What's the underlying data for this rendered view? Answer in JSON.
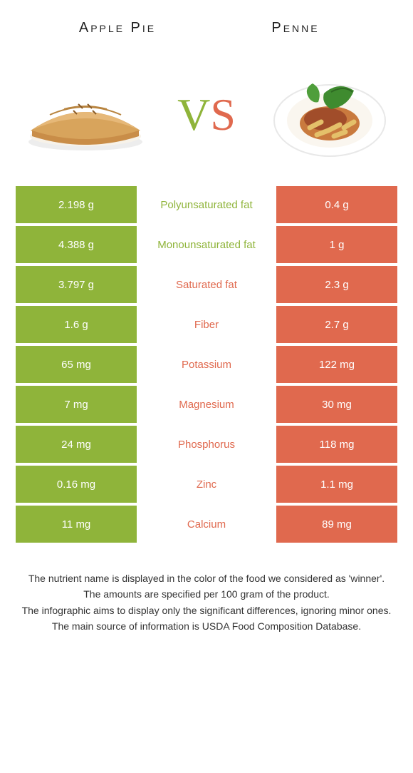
{
  "colors": {
    "left": "#8fb43a",
    "right": "#e0694e",
    "text": "#333333"
  },
  "header": {
    "left_title": "Apple Pie",
    "right_title": "Penne"
  },
  "vs": {
    "label": "VS",
    "left_color": "#8fb43a",
    "right_color": "#e0694e"
  },
  "rows": [
    {
      "left": "2.198 g",
      "label": "Polyunsaturated fat",
      "right": "0.4 g",
      "winner": "left"
    },
    {
      "left": "4.388 g",
      "label": "Monounsaturated fat",
      "right": "1 g",
      "winner": "left"
    },
    {
      "left": "3.797 g",
      "label": "Saturated fat",
      "right": "2.3 g",
      "winner": "right"
    },
    {
      "left": "1.6 g",
      "label": "Fiber",
      "right": "2.7 g",
      "winner": "right"
    },
    {
      "left": "65 mg",
      "label": "Potassium",
      "right": "122 mg",
      "winner": "right"
    },
    {
      "left": "7 mg",
      "label": "Magnesium",
      "right": "30 mg",
      "winner": "right"
    },
    {
      "left": "24 mg",
      "label": "Phosphorus",
      "right": "118 mg",
      "winner": "right"
    },
    {
      "left": "0.16 mg",
      "label": "Zinc",
      "right": "1.1 mg",
      "winner": "right"
    },
    {
      "left": "11 mg",
      "label": "Calcium",
      "right": "89 mg",
      "winner": "right"
    }
  ],
  "footer": {
    "line1": "The nutrient name is displayed in the color of the food we considered as 'winner'.",
    "line2": "The amounts are specified per 100 gram of the product.",
    "line3": "The infographic aims to display only the significant differences, ignoring minor ones.",
    "line4": "The main source of information is USDA Food Composition Database."
  }
}
